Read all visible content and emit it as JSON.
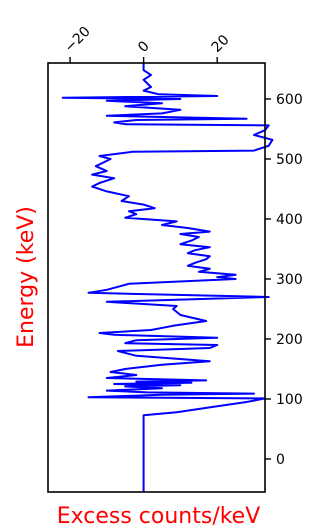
{
  "chart_data": {
    "type": "line",
    "xlabel": "Excess counts/keV",
    "ylabel": "Energy (keV)",
    "label_color": "#ff0000",
    "line_color": "#0000ff",
    "x_ticks": [
      -20,
      0,
      20
    ],
    "y_ticks": [
      0,
      100,
      200,
      300,
      400,
      500,
      600
    ],
    "xlim": [
      -26,
      33
    ],
    "ylim": [
      -55,
      660
    ],
    "grid": false,
    "series": [
      {
        "points": [
          [
            0,
            -55
          ],
          [
            0,
            0
          ],
          [
            0,
            50
          ],
          [
            0,
            73
          ],
          [
            9,
            78
          ],
          [
            20,
            88
          ],
          [
            28,
            95
          ],
          [
            33,
            101
          ],
          [
            -15,
            103
          ],
          [
            5,
            107
          ],
          [
            30,
            109
          ],
          [
            1,
            111
          ],
          [
            -10,
            114
          ],
          [
            5,
            118
          ],
          [
            -5,
            121
          ],
          [
            10,
            123
          ],
          [
            -8,
            125
          ],
          [
            13,
            127
          ],
          [
            -2,
            129
          ],
          [
            17,
            131
          ],
          [
            -10,
            135
          ],
          [
            -2,
            140
          ],
          [
            -9,
            145
          ],
          [
            -5,
            150
          ],
          [
            5,
            157
          ],
          [
            18,
            163
          ],
          [
            -2,
            172
          ],
          [
            -7,
            180
          ],
          [
            18,
            185
          ],
          [
            20,
            190
          ],
          [
            -5,
            193
          ],
          [
            -2,
            198
          ],
          [
            20,
            202
          ],
          [
            -8,
            207
          ],
          [
            -12,
            210
          ],
          [
            2,
            215
          ],
          [
            8,
            222
          ],
          [
            17,
            230
          ],
          [
            10,
            240
          ],
          [
            8,
            250
          ],
          [
            9,
            255
          ],
          [
            -10,
            262
          ],
          [
            34,
            270
          ],
          [
            -15,
            277
          ],
          [
            -10,
            282
          ],
          [
            -7,
            287
          ],
          [
            -4,
            292
          ],
          [
            25,
            300
          ],
          [
            20,
            303
          ],
          [
            25,
            307
          ],
          [
            15,
            312
          ],
          [
            18,
            317
          ],
          [
            12,
            322
          ],
          [
            14,
            327
          ],
          [
            17,
            333
          ],
          [
            18,
            338
          ],
          [
            12,
            343
          ],
          [
            14,
            348
          ],
          [
            18,
            353
          ],
          [
            10,
            358
          ],
          [
            13,
            364
          ],
          [
            15,
            370
          ],
          [
            10,
            375
          ],
          [
            18,
            379
          ],
          [
            12,
            385
          ],
          [
            5,
            390
          ],
          [
            9,
            396
          ],
          [
            -5,
            402
          ],
          [
            -2,
            408
          ],
          [
            -4,
            413
          ],
          [
            3,
            418
          ],
          [
            0,
            424
          ],
          [
            -6,
            430
          ],
          [
            -4,
            438
          ],
          [
            -10,
            446
          ],
          [
            -14,
            454
          ],
          [
            -12,
            460
          ],
          [
            -8,
            468
          ],
          [
            -14,
            474
          ],
          [
            -10,
            480
          ],
          [
            -13,
            488
          ],
          [
            -11,
            494
          ],
          [
            -9,
            500
          ],
          [
            -12,
            505
          ],
          [
            -3,
            512
          ],
          [
            30,
            514
          ],
          [
            34,
            522
          ],
          [
            35,
            532
          ],
          [
            30,
            540
          ],
          [
            33,
            548
          ],
          [
            34,
            556
          ],
          [
            -5,
            558
          ],
          [
            -8,
            561
          ],
          [
            -2,
            565
          ],
          [
            28,
            567
          ],
          [
            -10,
            572
          ],
          [
            5,
            576
          ],
          [
            10,
            582
          ],
          [
            -5,
            588
          ],
          [
            5,
            593
          ],
          [
            -10,
            597
          ],
          [
            10,
            600
          ],
          [
            -22,
            602
          ],
          [
            20,
            605
          ],
          [
            4,
            608
          ],
          [
            0,
            614
          ],
          [
            2,
            620
          ],
          [
            1,
            626
          ],
          [
            0,
            632
          ],
          [
            2,
            640
          ],
          [
            0,
            648
          ],
          [
            0,
            660
          ]
        ]
      }
    ]
  }
}
